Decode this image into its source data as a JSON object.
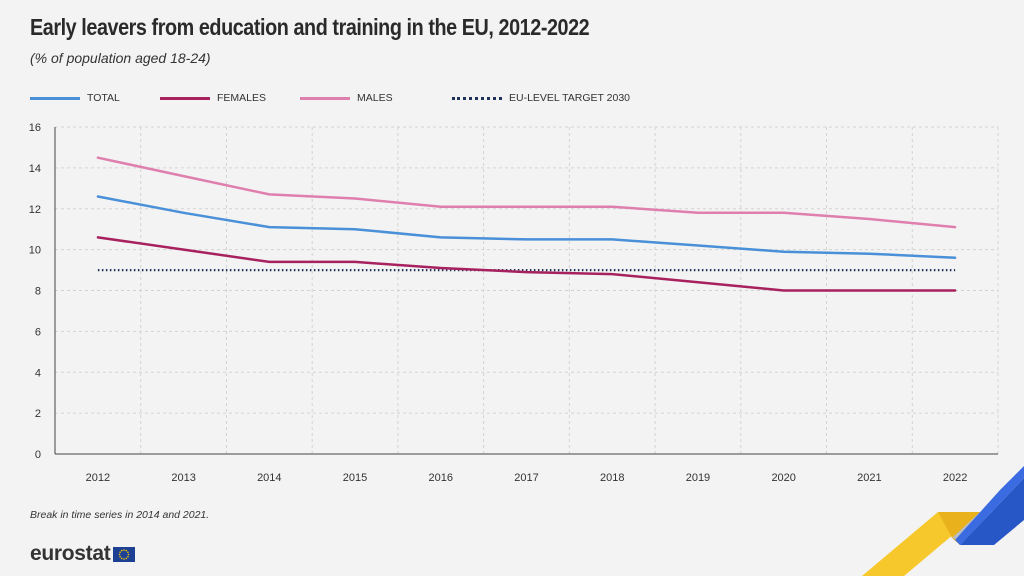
{
  "header": {
    "title": "Early leavers from education and training in the EU, 2012-2022",
    "subtitle": "(% of population aged 18-24)"
  },
  "legend": [
    {
      "label": "TOTAL",
      "color": "#4a90d9",
      "style": "solid"
    },
    {
      "label": "FEMALES",
      "color": "#a8215f",
      "style": "solid"
    },
    {
      "label": "MALES",
      "color": "#df7fae",
      "style": "solid"
    },
    {
      "label": "EU-LEVEL TARGET 2030",
      "color": "#1f3358",
      "style": "dotted"
    }
  ],
  "footnote": "Break in time series in 2014 and 2021.",
  "brand": {
    "name": "eurostat",
    "logo_icon": "eu-flag-icon"
  },
  "chart_data": {
    "type": "line",
    "categories": [
      "2012",
      "2013",
      "2014",
      "2015",
      "2016",
      "2017",
      "2018",
      "2019",
      "2020",
      "2021",
      "2022"
    ],
    "series": [
      {
        "name": "TOTAL",
        "color": "#4a90d9",
        "values": [
          12.6,
          11.8,
          11.1,
          11.0,
          10.6,
          10.5,
          10.5,
          10.2,
          9.9,
          9.8,
          9.6
        ]
      },
      {
        "name": "FEMALES",
        "color": "#a8215f",
        "values": [
          10.6,
          10.0,
          9.4,
          9.4,
          9.1,
          8.9,
          8.8,
          8.4,
          8.0,
          8.0,
          8.0
        ]
      },
      {
        "name": "MALES",
        "color": "#df7fae",
        "values": [
          14.5,
          13.6,
          12.7,
          12.5,
          12.1,
          12.1,
          12.1,
          11.8,
          11.8,
          11.5,
          11.1
        ]
      },
      {
        "name": "EU-LEVEL TARGET 2030",
        "color": "#1f3358",
        "style": "dotted",
        "values": [
          9,
          9,
          9,
          9,
          9,
          9,
          9,
          9,
          9,
          9,
          9
        ]
      }
    ],
    "ylim": [
      0,
      16
    ],
    "yticks": [
      0,
      2,
      4,
      6,
      8,
      10,
      12,
      14,
      16
    ],
    "grid": true,
    "legend_position": "top-left"
  }
}
